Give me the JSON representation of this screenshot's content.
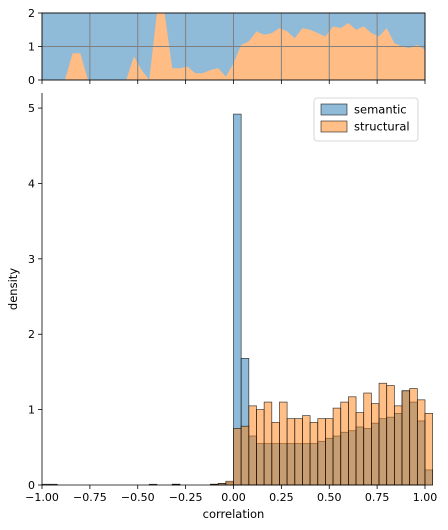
{
  "chart_data": {
    "type": "histogram",
    "xlabel": "correlation",
    "ylabel": "density",
    "xlim": [
      -1.0,
      1.0
    ],
    "x_ticks": [
      "−1.00",
      "−0.75",
      "−0.50",
      "−0.25",
      "0.00",
      "0.25",
      "0.50",
      "0.75",
      "1.00"
    ],
    "x_tick_values": [
      -1.0,
      -0.75,
      -0.5,
      -0.25,
      0.0,
      0.25,
      0.5,
      0.75,
      1.0
    ],
    "main": {
      "ylim": [
        0,
        5.2
      ],
      "y_ticks": [
        "0",
        "1",
        "2",
        "3",
        "4",
        "5"
      ],
      "y_tick_values": [
        0,
        1,
        2,
        3,
        4,
        5
      ],
      "bin_edges_start": -1.0,
      "bin_width": 0.04,
      "series": [
        {
          "name": "semantic",
          "color": "#1f77b4",
          "alpha": 0.5,
          "values": [
            0.01,
            0.01,
            0,
            0,
            0,
            0,
            0,
            0,
            0,
            0,
            0,
            0,
            0,
            0,
            0.01,
            0,
            0,
            0.01,
            0,
            0,
            0,
            0,
            0.01,
            0.02,
            0.03,
            4.92,
            1.68,
            0.65,
            0.55,
            0.55,
            0.55,
            0.55,
            0.55,
            0.55,
            0.55,
            0.55,
            0.58,
            0.62,
            0.65,
            0.7,
            0.72,
            0.77,
            0.75,
            0.82,
            0.88,
            0.9,
            0.95,
            1.25,
            1.1,
            0.85,
            0.2
          ]
        },
        {
          "name": "structural",
          "color": "#ff7f0e",
          "alpha": 0.5,
          "values": [
            0,
            0,
            0,
            0,
            0,
            0,
            0,
            0,
            0,
            0,
            0,
            0,
            0,
            0,
            0,
            0,
            0,
            0.01,
            0,
            0,
            0,
            0,
            0.01,
            0.02,
            0.05,
            0.75,
            0.78,
            1.05,
            1.0,
            1.1,
            0.83,
            1.1,
            0.88,
            0.88,
            0.92,
            0.83,
            0.88,
            0.88,
            1.02,
            1.1,
            1.17,
            0.96,
            1.22,
            1.08,
            1.35,
            1.32,
            1.05,
            1.25,
            1.28,
            1.13,
            0.95
          ]
        }
      ]
    },
    "top": {
      "type": "area",
      "ylim": [
        0,
        2
      ],
      "y_ticks": [
        "0",
        "1",
        "2"
      ],
      "y_tick_values": [
        0,
        1,
        2
      ],
      "grid": true,
      "x": [
        -1.0,
        -0.96,
        -0.92,
        -0.88,
        -0.84,
        -0.8,
        -0.76,
        -0.72,
        -0.68,
        -0.64,
        -0.6,
        -0.56,
        -0.52,
        -0.48,
        -0.44,
        -0.4,
        -0.36,
        -0.32,
        -0.28,
        -0.24,
        -0.2,
        -0.16,
        -0.12,
        -0.08,
        -0.04,
        0.0,
        0.04,
        0.08,
        0.12,
        0.16,
        0.2,
        0.24,
        0.28,
        0.32,
        0.36,
        0.4,
        0.44,
        0.48,
        0.52,
        0.56,
        0.6,
        0.64,
        0.68,
        0.72,
        0.76,
        0.8,
        0.84,
        0.88,
        0.92,
        0.96,
        1.0
      ],
      "structural_fraction": [
        0,
        0,
        0,
        0,
        0.8,
        0.8,
        0,
        0,
        0,
        0,
        0,
        0,
        0.7,
        0.3,
        0,
        2,
        2,
        0.35,
        0.35,
        0.4,
        0.2,
        0.2,
        0.3,
        0.35,
        0.1,
        0.5,
        1.05,
        1.15,
        1.45,
        1.35,
        1.4,
        1.55,
        1.45,
        1.25,
        1.55,
        1.5,
        1.4,
        1.3,
        1.6,
        1.55,
        1.7,
        1.5,
        1.6,
        1.4,
        1.3,
        1.55,
        1.1,
        1.0,
        0.95,
        1.05,
        0.9
      ]
    },
    "legend": {
      "location": "upper right",
      "entries": [
        "semantic",
        "structural"
      ]
    }
  }
}
